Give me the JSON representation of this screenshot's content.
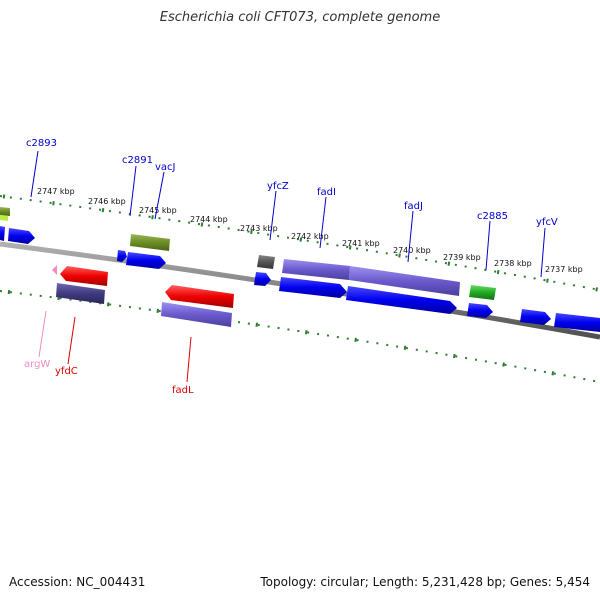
{
  "title": "Escherichia coli CFT073, complete genome",
  "accession_text": "Accession: NC_004431",
  "summary_text": "Topology: circular; Length: 5,231,428 bp; Genes: 5,454",
  "colors": {
    "backbone": "#808080",
    "ticks": "#2e7d32",
    "blue_gene": "#0000ee",
    "purple_gene": "#6a5acd",
    "dark_gene": "#3f3a80",
    "red_gene": "#ee0000",
    "olive_gene": "#6b8e23",
    "green_gene": "#22aa22",
    "gray_gene": "#555555",
    "pink_gene": "#f08cc0"
  },
  "scale_labels": [
    "2747 kbp",
    "2746 kbp",
    "2745 kbp",
    "2744 kbp",
    "2743 kbp",
    "2742 kbp",
    "2741 kbp",
    "2740 kbp",
    "2739 kbp",
    "2738 kbp",
    "2737 kbp"
  ],
  "gene_labels": [
    "c2893",
    "c2891",
    "vacJ",
    "yfcZ",
    "fadI",
    "fadJ",
    "c2885",
    "yfcV",
    "argW",
    "yfdC",
    "fadL"
  ]
}
